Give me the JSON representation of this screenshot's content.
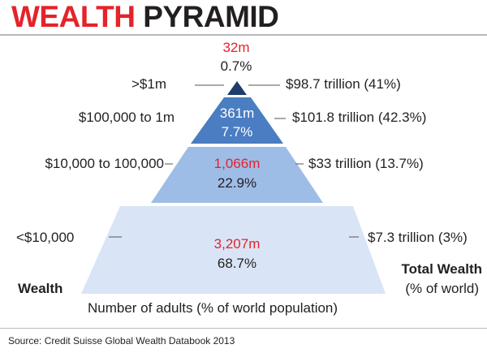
{
  "title": {
    "part1": "WEALTH",
    "part2": "PYRAMID"
  },
  "tiers": [
    {
      "wealth_band": ">$1m",
      "adults": "32m",
      "adults_pct": "0.7%",
      "total_wealth": "$98.7 trillion (41%)",
      "color": "#1f3c6b"
    },
    {
      "wealth_band": "$100,000 to 1m",
      "adults": "361m",
      "adults_pct": "7.7%",
      "total_wealth": "$101.8 trillion (42.3%)",
      "color": "#4a7dc2"
    },
    {
      "wealth_band": "$10,000 to 100,000",
      "adults": "1,066m",
      "adults_pct": "22.9%",
      "total_wealth": "$33 trillion (13.7%)",
      "color": "#9ebde6"
    },
    {
      "wealth_band": "<$10,000",
      "adults": "3,207m",
      "adults_pct": "68.7%",
      "total_wealth": "$7.3 trillion (3%)",
      "color": "#d9e5f6"
    }
  ],
  "labels": {
    "left_axis": "Wealth",
    "right_axis_title": "Total Wealth",
    "right_axis_sub": "(% of world)",
    "bottom_axis": "Number of adults (% of world population)"
  },
  "source": "Source: Credit Suisse Global Wealth Databook 2013",
  "colors": {
    "accent_red": "#e4232a",
    "text": "#231f20"
  }
}
